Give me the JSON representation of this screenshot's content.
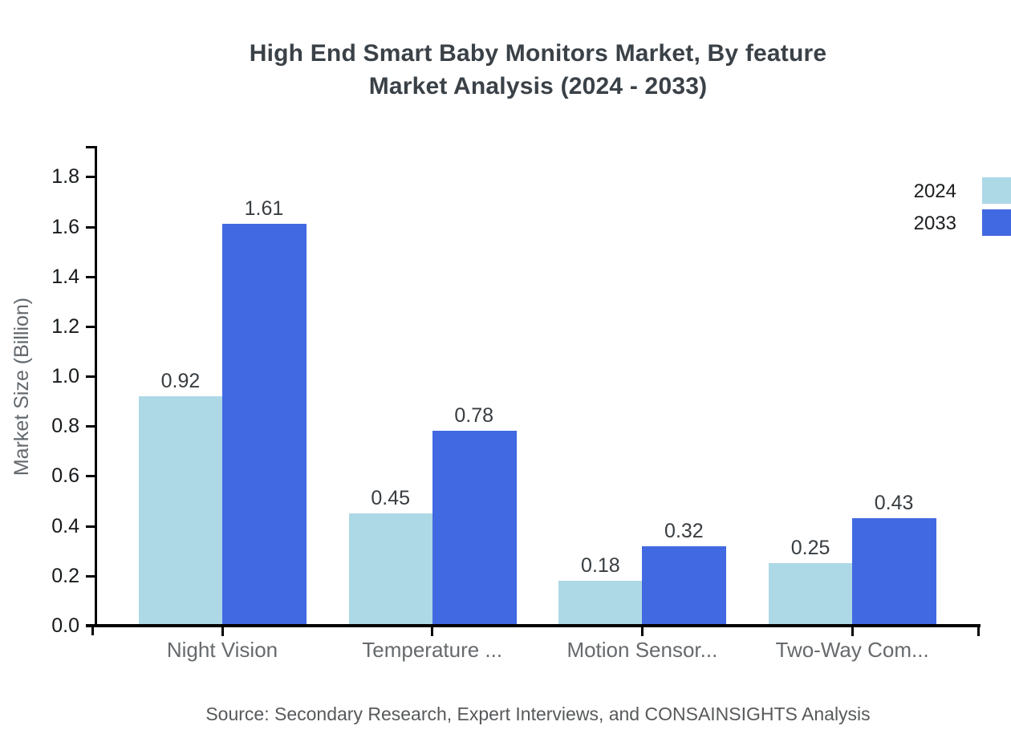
{
  "chart_data": {
    "type": "bar",
    "title_line1": "High End Smart Baby Monitors Market, By feature",
    "title_line2": "Market Analysis (2024 - 2033)",
    "ylabel": "Market Size (Billion)",
    "categories": [
      "Night Vision",
      "Temperature ...",
      "Motion Sensor...",
      "Two-Way Com..."
    ],
    "series": [
      {
        "name": "2024",
        "color": "#ADD8E6",
        "values": [
          0.92,
          0.45,
          0.18,
          0.25
        ]
      },
      {
        "name": "2033",
        "color": "#4169E1",
        "values": [
          1.61,
          0.78,
          0.32,
          0.43
        ]
      }
    ],
    "yticks": [
      "0.0",
      "0.2",
      "0.4",
      "0.6",
      "0.8",
      "1.0",
      "1.2",
      "1.4",
      "1.6",
      "1.8"
    ],
    "ylim": [
      0,
      1.92
    ],
    "grid": false,
    "legend_position": "top-right",
    "value_labels": true,
    "axis_color": "#000000"
  },
  "footer": {
    "source": "Source: Secondary Research, Expert Interviews, and CONSAINSIGHTS Analysis"
  }
}
